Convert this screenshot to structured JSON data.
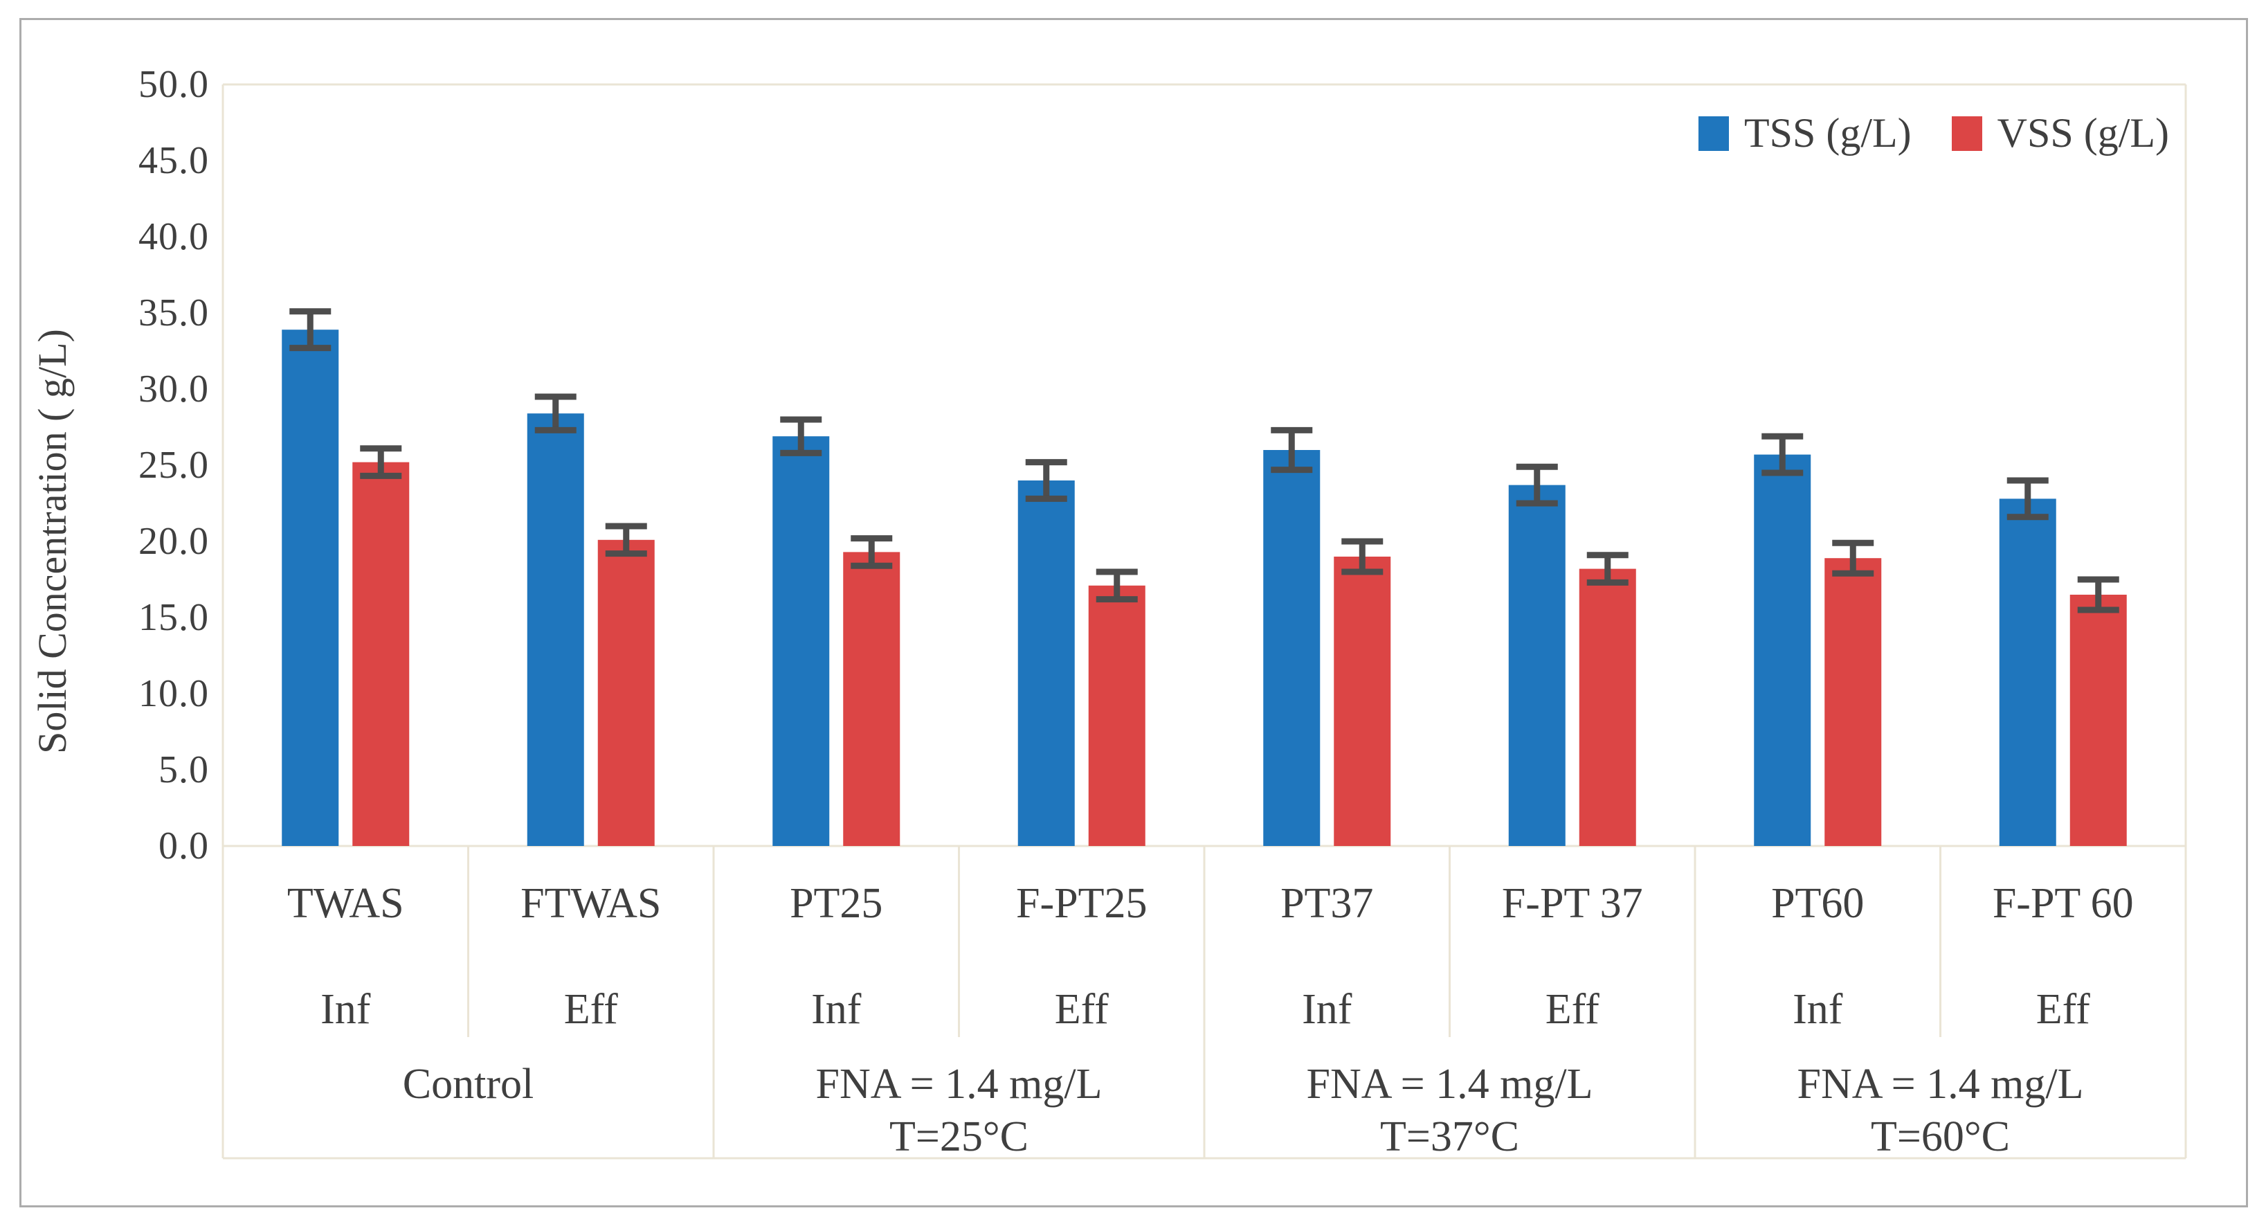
{
  "chart_data": {
    "type": "bar",
    "title": "",
    "ylabel": "Solid Concentration ( g/L)",
    "xlabel": "",
    "ylim": [
      0,
      50
    ],
    "ytick_step": 5,
    "ytick_decimals": 1,
    "grid": false,
    "legend_position": "top-right",
    "categories": [
      {
        "label": "TWAS",
        "stream": "Inf"
      },
      {
        "label": "FTWAS",
        "stream": "Eff"
      },
      {
        "label": "PT25",
        "stream": "Inf"
      },
      {
        "label": "F-PT25",
        "stream": "Eff"
      },
      {
        "label": "PT37",
        "stream": "Inf"
      },
      {
        "label": "F-PT 37",
        "stream": "Eff"
      },
      {
        "label": "PT60",
        "stream": "Inf"
      },
      {
        "label": "F-PT 60",
        "stream": "Eff"
      }
    ],
    "condition_groups": [
      {
        "label_lines": [
          "Control"
        ],
        "span": 2
      },
      {
        "label_lines": [
          "FNA = 1.4 mg/L",
          "T=25°C"
        ],
        "span": 2
      },
      {
        "label_lines": [
          "FNA = 1.4 mg/L",
          "T=37°C"
        ],
        "span": 2
      },
      {
        "label_lines": [
          "FNA = 1.4 mg/L",
          "T=60°C"
        ],
        "span": 2
      }
    ],
    "series": [
      {
        "name": "TSS (g/L)",
        "color": "#1f76bd",
        "values": [
          33.9,
          28.4,
          26.9,
          24.0,
          26.0,
          23.7,
          25.7,
          22.8
        ],
        "errors": [
          1.2,
          1.1,
          1.1,
          1.2,
          1.3,
          1.2,
          1.2,
          1.2
        ]
      },
      {
        "name": "VSS (g/L)",
        "color": "#dc4545",
        "values": [
          25.2,
          20.1,
          19.3,
          17.1,
          19.0,
          18.2,
          18.9,
          16.5
        ],
        "errors": [
          0.9,
          0.9,
          0.9,
          0.9,
          1.0,
          0.9,
          1.0,
          1.0
        ]
      }
    ],
    "colors": {
      "axis_line": "#eae4d5",
      "error_bar": "#4d4d4d",
      "text": "#3f3f3f",
      "figure_border": "#acacac",
      "background": "#ffffff"
    }
  }
}
